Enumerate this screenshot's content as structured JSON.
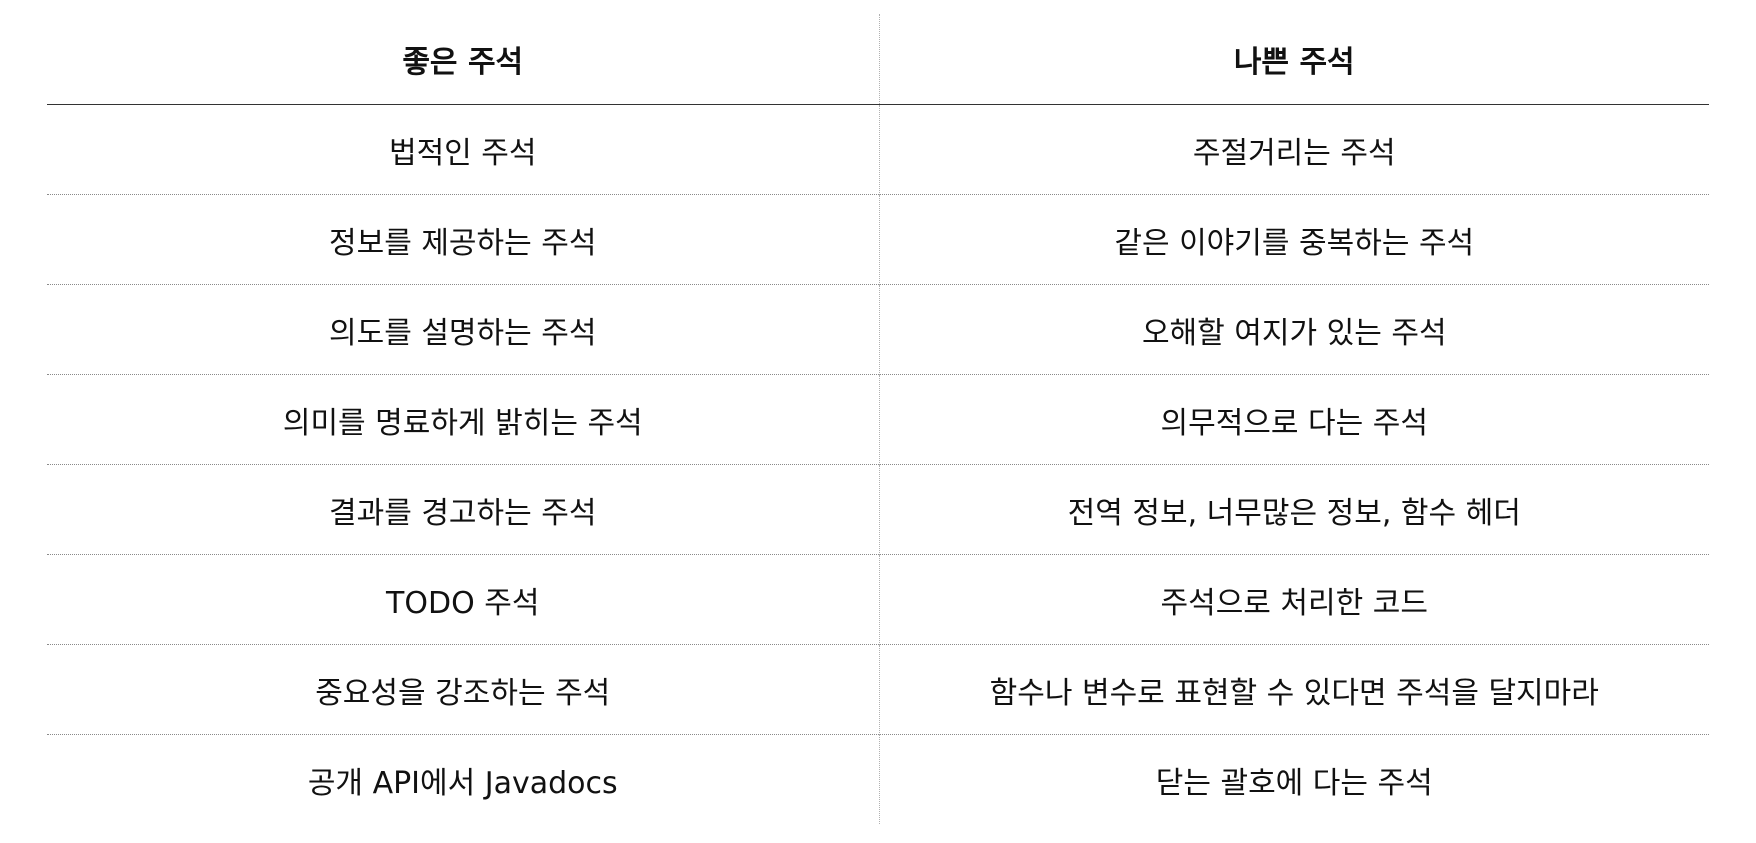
{
  "table": {
    "headers": [
      "좋은 주석",
      "나쁜 주석"
    ],
    "rows": [
      [
        "법적인 주석",
        "주절거리는 주석"
      ],
      [
        "정보를 제공하는 주석",
        "같은 이야기를 중복하는 주석"
      ],
      [
        "의도를 설명하는 주석",
        "오해할 여지가 있는 주석"
      ],
      [
        "의미를 명료하게 밝히는 주석",
        "의무적으로 다는 주석"
      ],
      [
        "결과를 경고하는 주석",
        "전역 정보, 너무많은 정보, 함수 헤더"
      ],
      [
        "TODO 주석",
        "주석으로 처리한 코드"
      ],
      [
        "중요성을 강조하는 주석",
        "함수나 변수로 표현할 수 있다면 주석을 달지마라"
      ],
      [
        "공개 API에서 Javadocs",
        "닫는 괄호에 다는 주석"
      ]
    ]
  }
}
